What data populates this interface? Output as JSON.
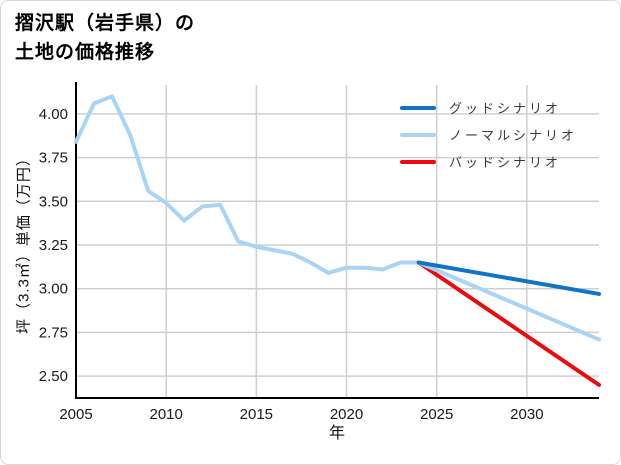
{
  "title": {
    "line1": "摺沢駅（岩手県）の",
    "line2": "土地の価格推移"
  },
  "chart_data": {
    "type": "line",
    "title": "摺沢駅（岩手県）の土地の価格推移",
    "xlabel": "年",
    "ylabel": "坪（3.3㎡）単価（万円）",
    "xlim": [
      2005,
      2034
    ],
    "ylim": [
      2.375,
      4.165
    ],
    "xticks": [
      2005,
      2010,
      2015,
      2020,
      2025,
      2030
    ],
    "yticks": [
      2.5,
      2.75,
      3.0,
      3.25,
      3.5,
      3.75,
      4.0
    ],
    "ytick_labels": [
      "2.50",
      "2.75",
      "3.00",
      "3.25",
      "3.50",
      "3.75",
      "4.00"
    ],
    "grid": true,
    "legend_position": "upper right",
    "history": {
      "color": "#a9d4f5",
      "x": [
        2005,
        2006,
        2007,
        2008,
        2009,
        2010,
        2011,
        2012,
        2013,
        2014,
        2015,
        2016,
        2017,
        2018,
        2019,
        2020,
        2021,
        2022,
        2023,
        2024
      ],
      "y": [
        3.84,
        4.06,
        4.1,
        3.88,
        3.56,
        3.49,
        3.39,
        3.47,
        3.48,
        3.27,
        3.24,
        3.22,
        3.2,
        3.15,
        3.09,
        3.12,
        3.12,
        3.11,
        3.15,
        3.15
      ]
    },
    "series": [
      {
        "name": "グッドシナリオ",
        "color": "#1274c5",
        "x": [
          2024,
          2034
        ],
        "y": [
          3.15,
          2.97
        ]
      },
      {
        "name": "ノーマルシナリオ",
        "color": "#a9d4f5",
        "x": [
          2024,
          2034
        ],
        "y": [
          3.15,
          2.71
        ]
      },
      {
        "name": "バッドシナリオ",
        "color": "#eb0b0e",
        "x": [
          2024,
          2034
        ],
        "y": [
          3.15,
          2.45
        ]
      }
    ],
    "colors": {
      "grid": "#cfcfcf",
      "spine": "#000000",
      "tick_label": "#1a1a1a",
      "legend_text": "#3a3a3a"
    }
  }
}
